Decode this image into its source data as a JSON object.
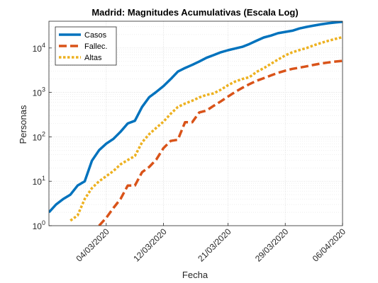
{
  "chart_data": {
    "type": "line",
    "title": "Madrid: Magnitudes Acumulativas (Escala Log)",
    "xlabel": "Fecha",
    "ylabel": "Personas",
    "y_scale": "log",
    "xlim": [
      "2020-02-25",
      "2020-04-06"
    ],
    "ylim": [
      1,
      40000
    ],
    "x_ticks": [
      "04/03/2020",
      "12/03/2020",
      "21/03/2020",
      "29/03/2020",
      "06/04/2020"
    ],
    "y_ticks": [
      {
        "value": 1,
        "base": "10",
        "exp": "0"
      },
      {
        "value": 10,
        "base": "10",
        "exp": "1"
      },
      {
        "value": 100,
        "base": "10",
        "exp": "2"
      },
      {
        "value": 1000,
        "base": "10",
        "exp": "3"
      },
      {
        "value": 10000,
        "base": "10",
        "exp": "4"
      }
    ],
    "grid": true,
    "legend_position": "top-left",
    "series": [
      {
        "name": "Casos",
        "color": "#0072BD",
        "style": "solid",
        "points": [
          [
            "2020-02-25",
            2
          ],
          [
            "2020-02-26",
            3
          ],
          [
            "2020-02-27",
            4
          ],
          [
            "2020-02-28",
            5
          ],
          [
            "2020-02-29",
            8
          ],
          [
            "2020-03-01",
            10
          ],
          [
            "2020-03-02",
            29
          ],
          [
            "2020-03-03",
            50
          ],
          [
            "2020-03-04",
            70
          ],
          [
            "2020-03-05",
            90
          ],
          [
            "2020-03-06",
            130
          ],
          [
            "2020-03-07",
            200
          ],
          [
            "2020-03-08",
            230
          ],
          [
            "2020-03-09",
            470
          ],
          [
            "2020-03-10",
            780
          ],
          [
            "2020-03-11",
            1030
          ],
          [
            "2020-03-12",
            1390
          ],
          [
            "2020-03-13",
            1990
          ],
          [
            "2020-03-14",
            2940
          ],
          [
            "2020-03-15",
            3540
          ],
          [
            "2020-03-16",
            4160
          ],
          [
            "2020-03-17",
            4960
          ],
          [
            "2020-03-18",
            6000
          ],
          [
            "2020-03-19",
            6900
          ],
          [
            "2020-03-20",
            8000
          ],
          [
            "2020-03-21",
            8900
          ],
          [
            "2020-03-22",
            9700
          ],
          [
            "2020-03-23",
            10600
          ],
          [
            "2020-03-24",
            12300
          ],
          [
            "2020-03-25",
            14600
          ],
          [
            "2020-03-26",
            17200
          ],
          [
            "2020-03-27",
            19000
          ],
          [
            "2020-03-28",
            21500
          ],
          [
            "2020-03-29",
            23000
          ],
          [
            "2020-03-30",
            24500
          ],
          [
            "2020-03-31",
            27500
          ],
          [
            "2020-04-01",
            29800
          ],
          [
            "2020-04-02",
            32000
          ],
          [
            "2020-04-03",
            34000
          ],
          [
            "2020-04-04",
            36000
          ],
          [
            "2020-04-05",
            37500
          ],
          [
            "2020-04-06",
            39000
          ]
        ]
      },
      {
        "name": "Fallec.",
        "color": "#D95319",
        "style": "dashed",
        "points": [
          [
            "2020-03-03",
            1
          ],
          [
            "2020-03-04",
            1.5
          ],
          [
            "2020-03-05",
            2.5
          ],
          [
            "2020-03-06",
            4
          ],
          [
            "2020-03-07",
            8
          ],
          [
            "2020-03-08",
            8
          ],
          [
            "2020-03-09",
            16
          ],
          [
            "2020-03-10",
            21
          ],
          [
            "2020-03-11",
            31
          ],
          [
            "2020-03-12",
            56
          ],
          [
            "2020-03-13",
            81
          ],
          [
            "2020-03-14",
            86
          ],
          [
            "2020-03-15",
            213
          ],
          [
            "2020-03-16",
            213
          ],
          [
            "2020-03-17",
            355
          ],
          [
            "2020-03-18",
            390
          ],
          [
            "2020-03-19",
            498
          ],
          [
            "2020-03-20",
            628
          ],
          [
            "2020-03-21",
            804
          ],
          [
            "2020-03-22",
            1021
          ],
          [
            "2020-03-23",
            1263
          ],
          [
            "2020-03-24",
            1535
          ],
          [
            "2020-03-25",
            1825
          ],
          [
            "2020-03-26",
            2090
          ],
          [
            "2020-03-27",
            2412
          ],
          [
            "2020-03-28",
            2757
          ],
          [
            "2020-03-29",
            3082
          ],
          [
            "2020-03-30",
            3392
          ],
          [
            "2020-03-31",
            3603
          ],
          [
            "2020-04-01",
            3865
          ],
          [
            "2020-04-02",
            4175
          ],
          [
            "2020-04-03",
            4483
          ],
          [
            "2020-04-04",
            4723
          ],
          [
            "2020-04-05",
            4941
          ],
          [
            "2020-04-06",
            5136
          ]
        ]
      },
      {
        "name": "Altas",
        "color": "#EDB120",
        "style": "dotted",
        "points": [
          [
            "2020-02-28",
            1.3
          ],
          [
            "2020-02-29",
            1.7
          ],
          [
            "2020-03-01",
            4
          ],
          [
            "2020-03-02",
            7
          ],
          [
            "2020-03-03",
            10
          ],
          [
            "2020-03-04",
            13
          ],
          [
            "2020-03-05",
            17
          ],
          [
            "2020-03-06",
            24
          ],
          [
            "2020-03-07",
            30
          ],
          [
            "2020-03-08",
            37
          ],
          [
            "2020-03-09",
            75
          ],
          [
            "2020-03-10",
            115
          ],
          [
            "2020-03-11",
            160
          ],
          [
            "2020-03-12",
            220
          ],
          [
            "2020-03-13",
            330
          ],
          [
            "2020-03-14",
            470
          ],
          [
            "2020-03-15",
            560
          ],
          [
            "2020-03-16",
            650
          ],
          [
            "2020-03-17",
            770
          ],
          [
            "2020-03-18",
            880
          ],
          [
            "2020-03-19",
            950
          ],
          [
            "2020-03-20",
            1150
          ],
          [
            "2020-03-21",
            1450
          ],
          [
            "2020-03-22",
            1750
          ],
          [
            "2020-03-23",
            2000
          ],
          [
            "2020-03-24",
            2200
          ],
          [
            "2020-03-25",
            2900
          ],
          [
            "2020-03-26",
            3500
          ],
          [
            "2020-03-27",
            4400
          ],
          [
            "2020-03-28",
            5500
          ],
          [
            "2020-03-29",
            6800
          ],
          [
            "2020-03-30",
            8000
          ],
          [
            "2020-03-31",
            9000
          ],
          [
            "2020-04-01",
            10000
          ],
          [
            "2020-04-02",
            11500
          ],
          [
            "2020-04-03",
            13000
          ],
          [
            "2020-04-04",
            14500
          ],
          [
            "2020-04-05",
            16000
          ],
          [
            "2020-04-06",
            17500
          ]
        ]
      }
    ]
  }
}
